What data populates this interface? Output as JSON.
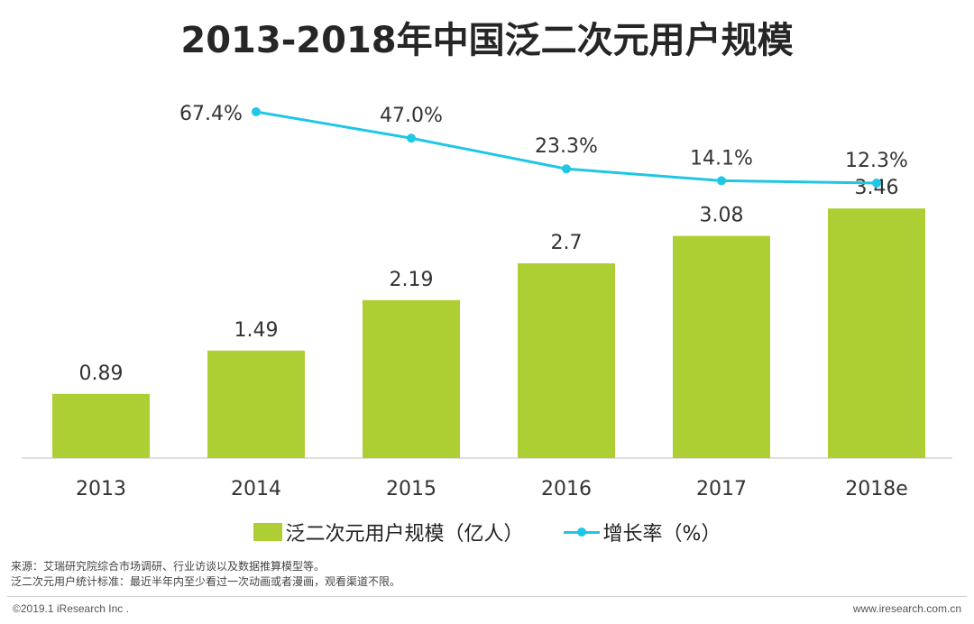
{
  "chart_data": {
    "type": "bar",
    "title": "2013-2018年中国泛二次元用户规模",
    "categories": [
      "2013",
      "2014",
      "2015",
      "2016",
      "2017",
      "2018e"
    ],
    "series": [
      {
        "name": "泛二次元用户规模（亿人）",
        "type": "bar",
        "values": [
          0.89,
          1.49,
          2.19,
          2.7,
          3.08,
          3.46
        ],
        "labels": [
          "0.89",
          "1.49",
          "2.19",
          "2.7",
          "3.08",
          "3.46"
        ],
        "color": "#aecf34"
      },
      {
        "name": "增长率（%）",
        "type": "line",
        "values": [
          null,
          67.4,
          47.0,
          23.3,
          14.1,
          12.3
        ],
        "labels": [
          "",
          "67.4%",
          "47.0%",
          "23.3%",
          "14.1%",
          "12.3%"
        ],
        "color": "#1fc6e6"
      }
    ],
    "ylim": [
      0,
      3.5
    ],
    "grid": false,
    "legend": "bottom"
  },
  "legend": {
    "bar_label": "泛二次元用户规模（亿人）",
    "line_label": "增长率（%）"
  },
  "notes": {
    "source": "来源：艾瑞研究院综合市场调研、行业访谈以及数据推算模型等。",
    "definition": "泛二次元用户统计标准：最近半年内至少看过一次动画或者漫画，观看渠道不限。"
  },
  "footer": {
    "copyright": "©2019.1 iResearch Inc .",
    "website": "www.iresearch.com.cn"
  }
}
